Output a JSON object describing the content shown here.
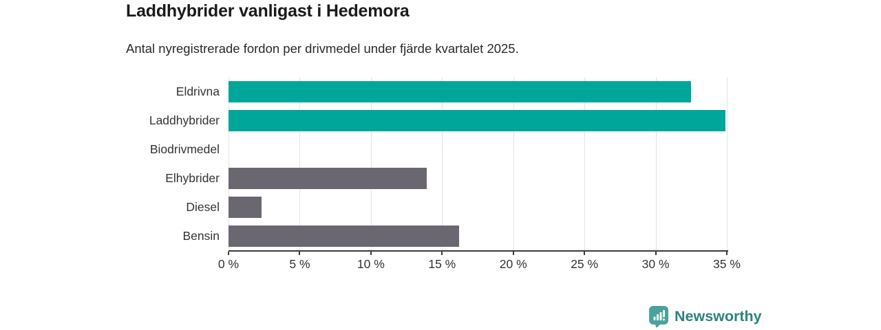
{
  "header": {
    "title": "Laddhybrider vanligast i Hedemora",
    "subtitle": "Antal nyregistrerade fordon per drivmedel under fjärde kvartalet 2025."
  },
  "chart_data": {
    "type": "bar",
    "orientation": "horizontal",
    "title": "Laddhybrider vanligast i Hedemora",
    "subtitle": "Antal nyregistrerade fordon per drivmedel under fjärde kvartalet 2025.",
    "categories": [
      "Eldrivna",
      "Laddhybrider",
      "Biodrivmedel",
      "Elhybrider",
      "Diesel",
      "Bensin"
    ],
    "values": [
      32.5,
      34.9,
      0,
      13.9,
      2.3,
      16.2
    ],
    "unit": "%",
    "xlim": [
      0,
      35
    ],
    "x_ticks": [
      0,
      5,
      10,
      15,
      20,
      25,
      30,
      35
    ],
    "x_tick_labels": [
      "0 %",
      "5 %",
      "10 %",
      "15 %",
      "20 %",
      "25 %",
      "30 %",
      "35 %"
    ],
    "bar_colors": [
      "#00a69a",
      "#00a69a",
      "#6b6771",
      "#6b6771",
      "#6b6771",
      "#6b6771"
    ],
    "grid": true,
    "legend": null,
    "colors": {
      "accent_teal": "#00a69a",
      "neutral_gray": "#6b6771",
      "gridline": "#e4e4e4",
      "axis": "#3a3a3a",
      "text": "#333333"
    }
  },
  "branding": {
    "logo_text": "Newsworthy",
    "logo_text_color": "#2c837d",
    "logo_icon": "newsworthy-chart-bubble-icon",
    "logo_icon_color": "#4ba29b"
  }
}
